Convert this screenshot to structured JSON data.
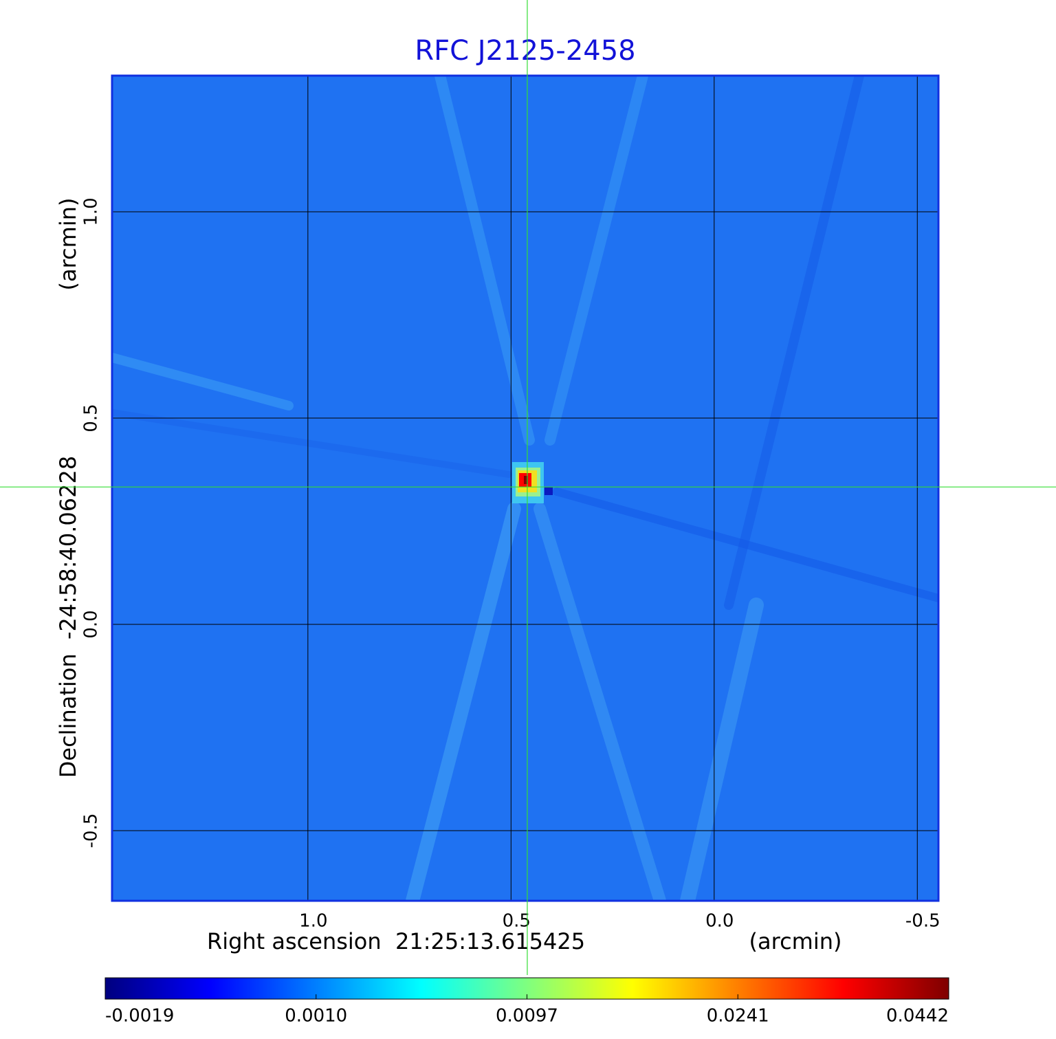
{
  "chart_data": {
    "type": "image",
    "title": "RFC J2125-2458",
    "xlabel": "Right ascension  21:25:13.615425",
    "xunit": "(arcmin)",
    "ylabel": "Declination  -24:58:40.06228",
    "yunit": "(arcmin)",
    "xlim": [
      1.482,
      -0.552
    ],
    "ylim": [
      -0.67,
      1.33
    ],
    "xticks": [
      {
        "value": 1,
        "label": "1.0"
      },
      0.5,
      {
        "value": 0,
        "label": "0.0"
      },
      -0.5
    ],
    "yticks": [
      {
        "value": -0.5,
        "label": "-0.5"
      },
      {
        "value": 0,
        "label": "0.0"
      },
      0.5,
      {
        "value": 1,
        "label": "1.0"
      }
    ],
    "grid": true,
    "crosshair": {
      "x": 0.46,
      "y": 0.333,
      "color": "#33dd33"
    },
    "source": {
      "x": 0.465,
      "y": 0.35,
      "peak": 0.0442
    },
    "colormap": [
      "#00007f",
      "#0000ff",
      "#007fff",
      "#00ffff",
      "#7fff7f",
      "#ffff00",
      "#ff7f00",
      "#ff0000",
      "#7f0000"
    ],
    "colorbar_ticks": [
      {
        "value": -0.0019,
        "label": "-0.0019"
      },
      {
        "value": 0.001,
        "label": "0.0010"
      },
      {
        "value": 0.0097,
        "label": "0.0097"
      },
      {
        "value": 0.0241,
        "label": "0.0241"
      },
      {
        "value": 0.0442,
        "label": "0.0442"
      }
    ]
  }
}
